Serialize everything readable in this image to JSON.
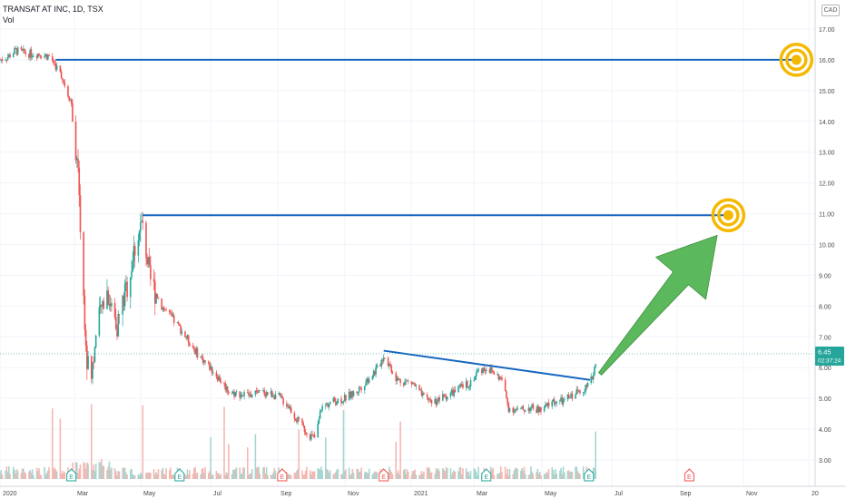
{
  "header": {
    "title": "TRANSAT AT INC, 1D, TSX",
    "volume_label": "Vol"
  },
  "currency": "CAD",
  "price_label": {
    "price": "6.45",
    "timer": "02:37:24"
  },
  "colors": {
    "up": "#26a69a",
    "down": "#ef5350",
    "vol_up": "#a5d6d1",
    "vol_down": "#f5b7b1",
    "trendline": "#1565c0",
    "target": "#f5b800",
    "arrow": "#5cb85c",
    "price_badge": "#26a69a",
    "grid": "#f0f3fa",
    "axis_text": "#4a4a4a"
  },
  "chart_data": {
    "type": "candlestick",
    "symbol": "TRANSAT AT INC",
    "interval": "1D",
    "exchange": "TSX",
    "y_ticks": [
      3.0,
      4.0,
      5.0,
      6.0,
      7.0,
      8.0,
      9.0,
      10.0,
      11.0,
      12.0,
      13.0,
      14.0,
      15.0,
      16.0,
      17.0
    ],
    "x_ticks": [
      "2020",
      "Mar",
      "May",
      "Jul",
      "Sep",
      "Nov",
      "2021",
      "Mar",
      "May",
      "Jul",
      "Sep",
      "Nov",
      "20"
    ],
    "last_price": 6.45,
    "price_path": [
      [
        "2020-01-01",
        16.0
      ],
      [
        "2020-01-08",
        16.1
      ],
      [
        "2020-01-15",
        16.3
      ],
      [
        "2020-01-25",
        16.2
      ],
      [
        "2020-02-05",
        16.2
      ],
      [
        "2020-02-15",
        16.1
      ],
      [
        "2020-02-25",
        15.5
      ],
      [
        "2020-03-05",
        14.6
      ],
      [
        "2020-03-10",
        12.8
      ],
      [
        "2020-03-14",
        10.0
      ],
      [
        "2020-03-18",
        6.5
      ],
      [
        "2020-03-22",
        5.6
      ],
      [
        "2020-03-28",
        7.2
      ],
      [
        "2020-04-05",
        8.6
      ],
      [
        "2020-04-15",
        7.4
      ],
      [
        "2020-04-25",
        8.8
      ],
      [
        "2020-05-03",
        10.3
      ],
      [
        "2020-05-08",
        10.7
      ],
      [
        "2020-05-14",
        8.9
      ],
      [
        "2020-05-25",
        8.0
      ],
      [
        "2020-06-10",
        7.3
      ],
      [
        "2020-06-25",
        6.5
      ],
      [
        "2020-07-10",
        5.9
      ],
      [
        "2020-07-25",
        5.2
      ],
      [
        "2020-08-10",
        5.1
      ],
      [
        "2020-08-25",
        5.2
      ],
      [
        "2020-09-05",
        5.1
      ],
      [
        "2020-09-15",
        4.8
      ],
      [
        "2020-09-25",
        4.2
      ],
      [
        "2020-10-05",
        3.8
      ],
      [
        "2020-10-10",
        3.7
      ],
      [
        "2020-10-15",
        4.7
      ],
      [
        "2020-10-25",
        4.9
      ],
      [
        "2020-11-05",
        5.0
      ],
      [
        "2020-11-15",
        5.2
      ],
      [
        "2020-11-25",
        5.6
      ],
      [
        "2020-12-05",
        6.0
      ],
      [
        "2020-12-10",
        6.4
      ],
      [
        "2020-12-15",
        6.1
      ],
      [
        "2020-12-22",
        5.6
      ],
      [
        "2021-01-05",
        5.5
      ],
      [
        "2021-01-15",
        5.0
      ],
      [
        "2021-01-25",
        4.9
      ],
      [
        "2021-02-05",
        5.1
      ],
      [
        "2021-02-15",
        5.3
      ],
      [
        "2021-02-25",
        5.5
      ],
      [
        "2021-03-05",
        5.9
      ],
      [
        "2021-03-12",
        6.0
      ],
      [
        "2021-03-20",
        5.8
      ],
      [
        "2021-03-26",
        5.6
      ],
      [
        "2021-04-01",
        4.7
      ],
      [
        "2021-04-10",
        4.6
      ],
      [
        "2021-04-20",
        4.7
      ],
      [
        "2021-05-01",
        4.6
      ],
      [
        "2021-05-10",
        4.9
      ],
      [
        "2021-05-20",
        4.9
      ],
      [
        "2021-05-28",
        5.1
      ],
      [
        "2021-06-05",
        5.3
      ],
      [
        "2021-06-12",
        5.4
      ],
      [
        "2021-06-16",
        5.8
      ],
      [
        "2021-06-19",
        6.45
      ]
    ],
    "earnings_markers": [
      {
        "date": "2020-03-05",
        "label": "E",
        "color": "up"
      },
      {
        "date": "2020-06-10",
        "label": "E",
        "color": "up"
      },
      {
        "date": "2020-09-10",
        "label": "E",
        "color": "down"
      },
      {
        "date": "2020-12-10",
        "label": "E",
        "color": "down"
      },
      {
        "date": "2021-03-12",
        "label": "E",
        "color": "up"
      },
      {
        "date": "2021-06-12",
        "label": "E",
        "color": "up"
      },
      {
        "date": "2021-09-10",
        "label": "E",
        "color": "down"
      }
    ],
    "drawings": {
      "horizontal_levels": [
        {
          "price": 16.0,
          "from": "2020-02-20",
          "to": "2021-12-15",
          "target_at": "2021-12-15"
        },
        {
          "price": 10.95,
          "from": "2020-05-08",
          "to": "2021-10-15",
          "target_at": "2021-10-15"
        }
      ],
      "descending_trendline": {
        "from": [
          "2020-12-10",
          6.55
        ],
        "to": [
          "2021-06-13",
          5.6
        ]
      },
      "arrow": {
        "from": [
          "2021-06-22",
          5.8
        ],
        "to": [
          "2021-10-05",
          10.3
        ]
      }
    },
    "volume_scale_max": 1.0
  }
}
